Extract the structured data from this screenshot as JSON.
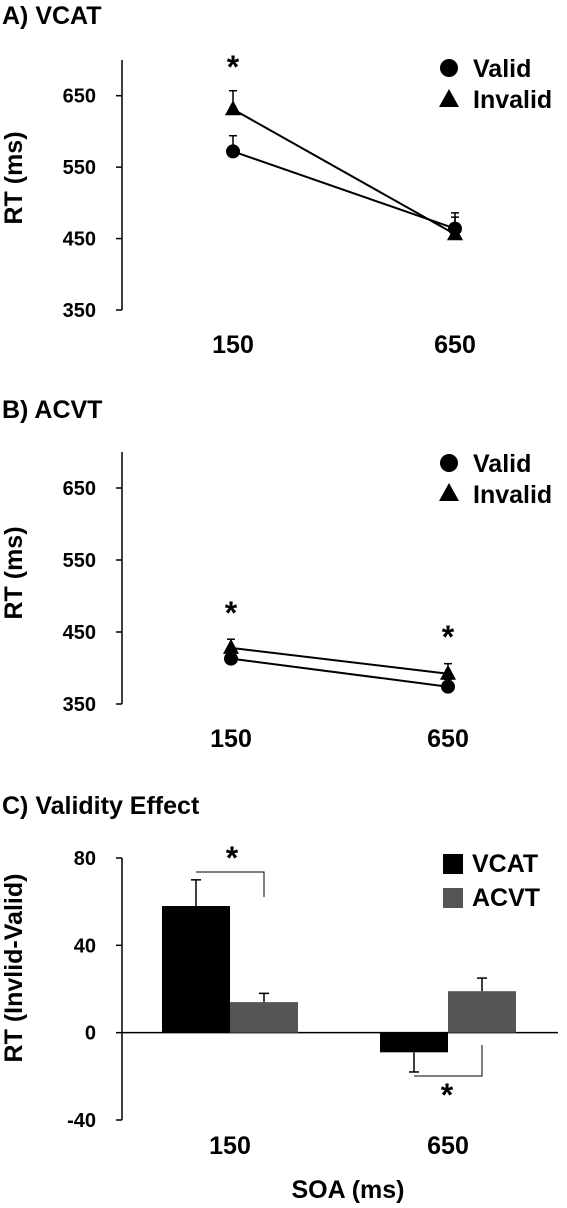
{
  "chart_data": [
    {
      "panel_label": "A) VCAT",
      "type": "line",
      "x": [
        "150",
        "650"
      ],
      "ylabel": "RT (ms)",
      "ylim": [
        350,
        700
      ],
      "yticks": [
        "350",
        "450",
        "550",
        "650"
      ],
      "series": [
        {
          "name": "Valid",
          "marker": "circle",
          "values": [
            572,
            464
          ],
          "error": [
            22,
            22
          ]
        },
        {
          "name": "Invalid",
          "marker": "triangle",
          "values": [
            631,
            456
          ],
          "error": [
            26,
            24
          ]
        }
      ],
      "annotations": [
        "*"
      ],
      "legend_position": "top-right",
      "grid": false
    },
    {
      "panel_label": "B) ACVT",
      "type": "line",
      "x": [
        "150",
        "650"
      ],
      "ylabel": "RT (ms)",
      "ylim": [
        350,
        700
      ],
      "yticks": [
        "350",
        "450",
        "550",
        "650"
      ],
      "series": [
        {
          "name": "Valid",
          "marker": "circle",
          "values": [
            413,
            374
          ],
          "error": [
            10,
            10
          ]
        },
        {
          "name": "Invalid",
          "marker": "triangle",
          "values": [
            428,
            392
          ],
          "error": [
            12,
            14
          ]
        }
      ],
      "annotations": [
        "*",
        "*"
      ],
      "legend_position": "top-right",
      "grid": false
    },
    {
      "panel_label": "C) Validity Effect",
      "type": "bar",
      "categories": [
        "150",
        "650"
      ],
      "ylabel": "RT (Invlid-Valid)",
      "xlabel": "SOA (ms)",
      "ylim": [
        -40,
        80
      ],
      "yticks": [
        "-40",
        "0",
        "40",
        "80"
      ],
      "series": [
        {
          "name": "VCAT",
          "color": "#000000",
          "values": [
            58,
            -9
          ],
          "error": [
            12,
            9
          ]
        },
        {
          "name": "ACVT",
          "color": "#555555",
          "values": [
            14,
            19
          ],
          "error": [
            4,
            6
          ]
        }
      ],
      "annotations": [
        "*",
        "*"
      ],
      "legend_position": "top-right",
      "grid": false
    }
  ]
}
